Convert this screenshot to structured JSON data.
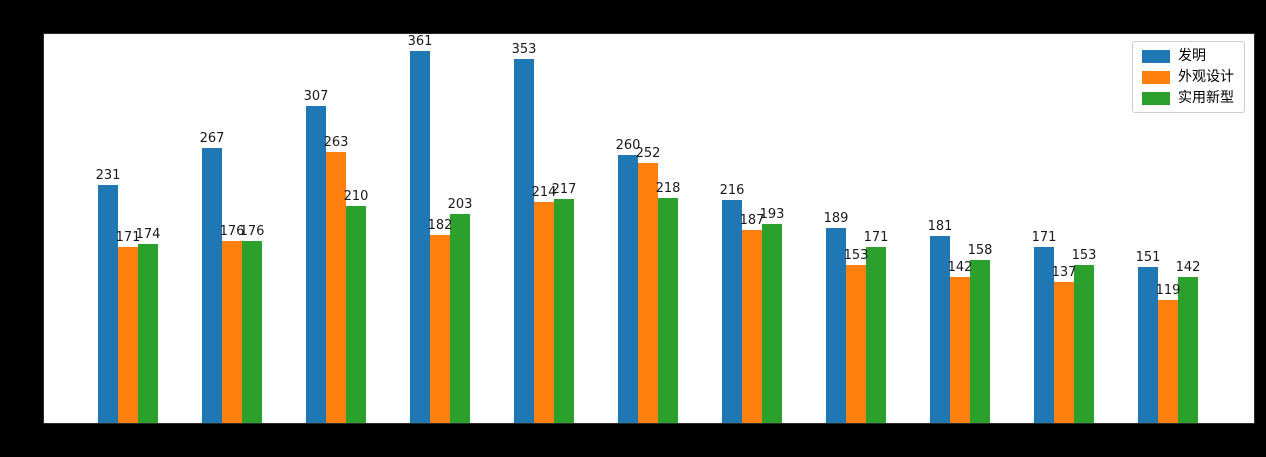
{
  "figure": {
    "background_color": "#000000",
    "plot_background_color": "#ffffff",
    "label_text_color": "#1a1a1a"
  },
  "legend": {
    "position": "upper-right",
    "items": [
      {
        "label": "发明",
        "color": "#1f77b4"
      },
      {
        "label": "外观设计",
        "color": "#ff7f0e"
      },
      {
        "label": "实用新型",
        "color": "#2ca02c"
      }
    ]
  },
  "chart_data": {
    "type": "bar",
    "title": "",
    "xlabel": "",
    "ylabel": "",
    "x_axis_labels_visible": false,
    "y_axis_labels_visible": false,
    "grid": false,
    "value_labels": true,
    "num_groups": 11,
    "categories": [
      "",
      "",
      "",
      "",
      "",
      "",
      "",
      "",
      "",
      "",
      ""
    ],
    "series": [
      {
        "name": "发明",
        "color": "#1f77b4",
        "values": [
          231,
          267,
          307,
          361,
          353,
          260,
          216,
          189,
          181,
          171,
          151
        ]
      },
      {
        "name": "外观设计",
        "color": "#ff7f0e",
        "values": [
          171,
          176,
          263,
          182,
          214,
          252,
          187,
          153,
          142,
          137,
          119
        ]
      },
      {
        "name": "实用新型",
        "color": "#2ca02c",
        "values": [
          174,
          176,
          210,
          203,
          217,
          218,
          193,
          171,
          158,
          153,
          142
        ]
      }
    ],
    "ylim": [
      0,
      379
    ],
    "legend_position": "upper right"
  }
}
